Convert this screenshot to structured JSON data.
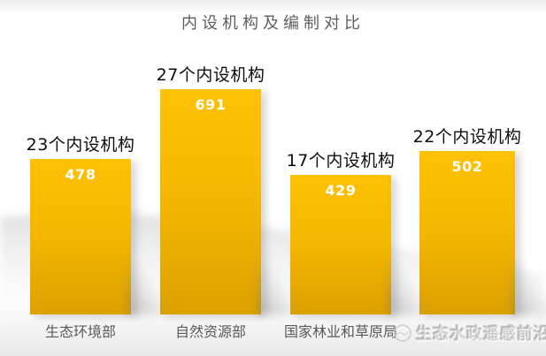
{
  "title": "内设机构及编制对比",
  "watermark": {
    "text": "生态水政遥感前沿",
    "logo_icon": "circular-emblem"
  },
  "colors": {
    "bar_top": "#FFC104",
    "bar_bottom": "#DDA100",
    "value_text": "#FFFFFF",
    "annotation_text": "#0D0D0D",
    "category_text": "#5A5A5A",
    "title_text": "#5E5E5E"
  },
  "chart_data": {
    "type": "bar",
    "title": "内设机构及编制对比",
    "categories": [
      "生态环境部",
      "自然资源部",
      "国家林业和草原局",
      ""
    ],
    "values": [
      478,
      691,
      429,
      502
    ],
    "bar_labels": [
      "23个内设机构",
      "27个内设机构",
      "17个内设机构",
      "22个内设机构"
    ],
    "xlabel": "",
    "ylabel": "",
    "ylim": [
      0,
      691
    ],
    "grid": false,
    "legend": null,
    "value_labels_inside_bars": true
  }
}
